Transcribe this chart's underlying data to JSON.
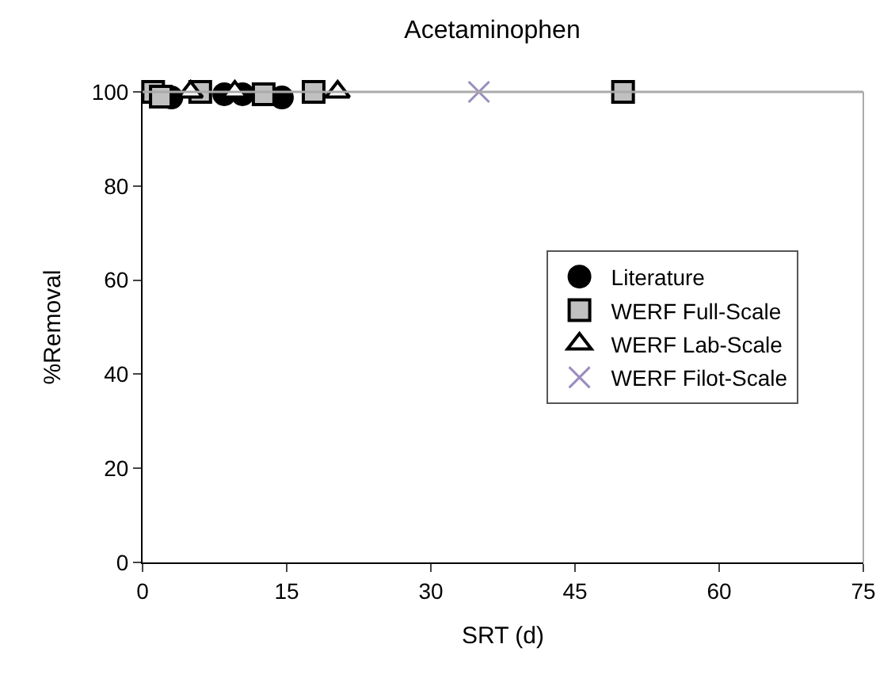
{
  "chart_data": {
    "type": "scatter",
    "title": "Acetaminophen",
    "xlabel": "SRT (d)",
    "ylabel": "%Removal",
    "xlim": [
      0,
      75
    ],
    "xticks": [
      0,
      15,
      30,
      45,
      60,
      75
    ],
    "ylim": [
      0,
      100
    ],
    "yticks": [
      0,
      20,
      40,
      60,
      80,
      100
    ],
    "legend": "right",
    "series": [
      {
        "name": "Literature",
        "color": "#000000",
        "marker": "circle",
        "x": [
          3,
          8.5,
          10.4,
          14.5
        ],
        "values": [
          98.8,
          99.5,
          99.5,
          98.8
        ]
      },
      {
        "name": "WERF Full-Scale",
        "color": "#c0c0c0",
        "marker": "square",
        "x": [
          1.1,
          1.9,
          6,
          12.6,
          17.8,
          50
        ],
        "values": [
          100,
          99,
          100,
          99.5,
          100,
          100
        ]
      },
      {
        "name": "WERF Lab-Scale",
        "color": "#ffffff",
        "marker": "triangle",
        "x": [
          5,
          9.6,
          20.3
        ],
        "values": [
          100,
          100,
          100
        ]
      },
      {
        "name": "WERF Filot-Scale",
        "color": "#9a8cc0",
        "marker": "cross",
        "x": [
          35
        ],
        "values": [
          100
        ]
      }
    ]
  }
}
